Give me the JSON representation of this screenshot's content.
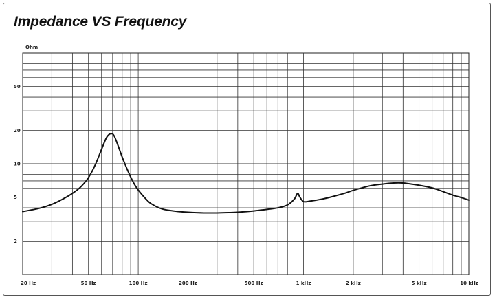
{
  "chart_data": {
    "type": "line",
    "title": "Impedance VS Frequency",
    "ylabel": "Ohm",
    "xlabel": "",
    "x_scale": "log",
    "y_scale": "log",
    "xlim": [
      20,
      10000
    ],
    "ylim": [
      1,
      100
    ],
    "grid": true,
    "x_ticks": [
      {
        "value": 20,
        "label": "20 Hz"
      },
      {
        "value": 50,
        "label": "50 Hz"
      },
      {
        "value": 100,
        "label": "100 Hz"
      },
      {
        "value": 200,
        "label": "200 Hz"
      },
      {
        "value": 500,
        "label": "500 Hz"
      },
      {
        "value": 1000,
        "label": "1 kHz"
      },
      {
        "value": 2000,
        "label": "2 kHz"
      },
      {
        "value": 5000,
        "label": "5 kHz"
      },
      {
        "value": 10000,
        "label": "10 kHz"
      }
    ],
    "y_ticks": [
      {
        "value": 50,
        "label": "50"
      },
      {
        "value": 20,
        "label": "20"
      },
      {
        "value": 10,
        "label": "10"
      },
      {
        "value": 5,
        "label": "5"
      },
      {
        "value": 2,
        "label": "2"
      }
    ],
    "series": [
      {
        "color": "#111111",
        "points": [
          [
            20,
            3.7
          ],
          [
            25,
            3.95
          ],
          [
            30,
            4.3
          ],
          [
            35,
            4.8
          ],
          [
            40,
            5.4
          ],
          [
            45,
            6.2
          ],
          [
            50,
            7.5
          ],
          [
            55,
            9.8
          ],
          [
            60,
            13.5
          ],
          [
            64,
            17.0
          ],
          [
            67,
            18.5
          ],
          [
            70,
            18.6
          ],
          [
            72,
            17.5
          ],
          [
            75,
            15.0
          ],
          [
            80,
            11.5
          ],
          [
            85,
            9.2
          ],
          [
            90,
            7.6
          ],
          [
            95,
            6.5
          ],
          [
            100,
            5.8
          ],
          [
            110,
            4.9
          ],
          [
            120,
            4.35
          ],
          [
            140,
            3.9
          ],
          [
            170,
            3.72
          ],
          [
            200,
            3.65
          ],
          [
            250,
            3.6
          ],
          [
            300,
            3.6
          ],
          [
            350,
            3.62
          ],
          [
            400,
            3.65
          ],
          [
            500,
            3.75
          ],
          [
            600,
            3.87
          ],
          [
            700,
            4.0
          ],
          [
            800,
            4.25
          ],
          [
            880,
            4.8
          ],
          [
            920,
            5.4
          ],
          [
            950,
            5.0
          ],
          [
            1000,
            4.55
          ],
          [
            1100,
            4.6
          ],
          [
            1300,
            4.8
          ],
          [
            1500,
            5.05
          ],
          [
            1800,
            5.45
          ],
          [
            2000,
            5.75
          ],
          [
            2500,
            6.3
          ],
          [
            3000,
            6.55
          ],
          [
            3500,
            6.7
          ],
          [
            4000,
            6.7
          ],
          [
            4500,
            6.55
          ],
          [
            5000,
            6.4
          ],
          [
            6000,
            6.05
          ],
          [
            7000,
            5.6
          ],
          [
            8000,
            5.2
          ],
          [
            9000,
            4.95
          ],
          [
            10000,
            4.7
          ]
        ]
      }
    ]
  }
}
